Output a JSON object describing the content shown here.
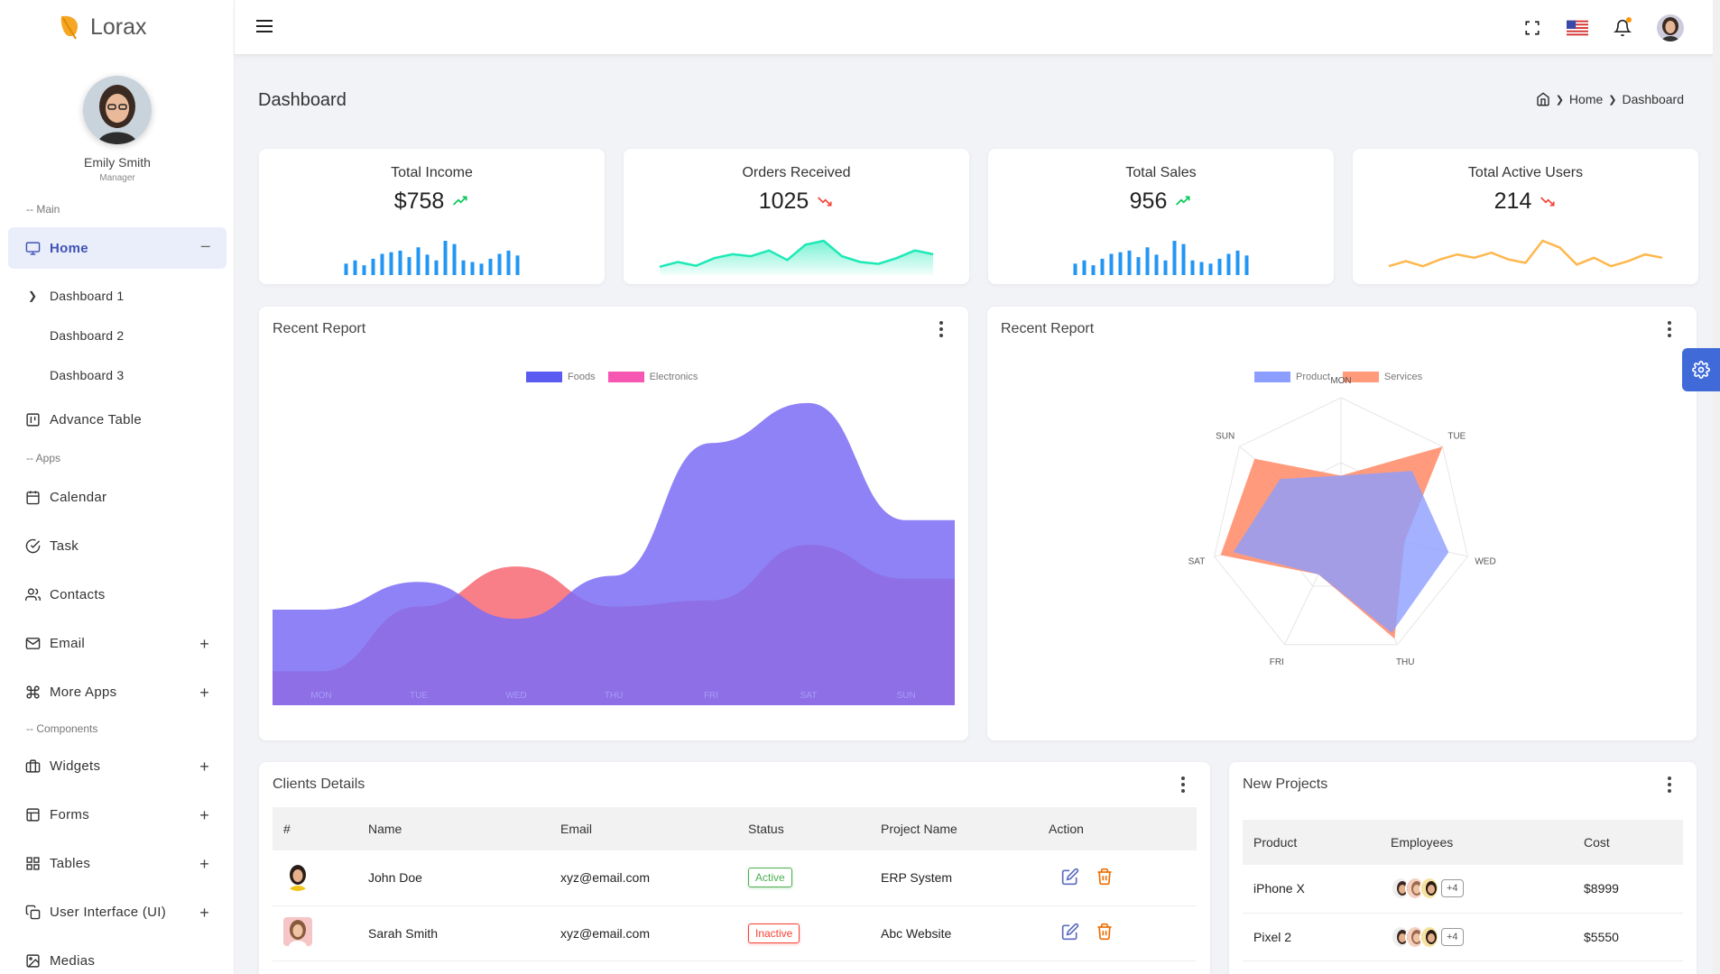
{
  "app": {
    "name": "Lorax"
  },
  "profile": {
    "name": "Emily Smith",
    "role": "Manager"
  },
  "sidebar": {
    "sections": {
      "main": "-- Main",
      "apps": "-- Apps",
      "components": "-- Components"
    },
    "home": {
      "label": "Home",
      "toggle": "–"
    },
    "dashboards": [
      "Dashboard 1",
      "Dashboard 2",
      "Dashboard 3"
    ],
    "advance_table": "Advance Table",
    "apps": [
      {
        "label": "Calendar",
        "icon": "calendar-icon"
      },
      {
        "label": "Task",
        "icon": "task-icon"
      },
      {
        "label": "Contacts",
        "icon": "contacts-icon"
      },
      {
        "label": "Email",
        "icon": "mail-icon",
        "expand": "+"
      },
      {
        "label": "More Apps",
        "icon": "command-icon",
        "expand": "+"
      }
    ],
    "components": [
      {
        "label": "Widgets",
        "icon": "briefcase-icon",
        "expand": "+"
      },
      {
        "label": "Forms",
        "icon": "layout-icon",
        "expand": "+"
      },
      {
        "label": "Tables",
        "icon": "grid-icon",
        "expand": "+"
      },
      {
        "label": "User Interface (UI)",
        "icon": "copy-icon",
        "expand": "+"
      },
      {
        "label": "Medias",
        "icon": "image-icon"
      }
    ]
  },
  "header": {
    "title": "Dashboard",
    "breadcrumb": {
      "home": "Home",
      "current": "Dashboard"
    }
  },
  "stats": [
    {
      "title": "Total Income",
      "value": "$758",
      "trend": "up",
      "chart": "bar",
      "color": "#2196f3",
      "data": [
        14,
        18,
        12,
        20,
        26,
        28,
        30,
        22,
        34,
        25,
        18,
        42,
        38,
        18,
        16,
        14,
        20,
        26,
        30,
        24
      ]
    },
    {
      "title": "Orders Received",
      "value": "1025",
      "trend": "down",
      "chart": "area",
      "color": "#1de9b6",
      "data": [
        3,
        8,
        4,
        12,
        16,
        14,
        20,
        10,
        26,
        30,
        14,
        8,
        6,
        12,
        20,
        16
      ]
    },
    {
      "title": "Total Sales",
      "value": "956",
      "trend": "up",
      "chart": "bar",
      "color": "#2196f3",
      "data": [
        14,
        18,
        12,
        20,
        26,
        28,
        30,
        22,
        34,
        25,
        18,
        42,
        38,
        18,
        16,
        14,
        20,
        26,
        30,
        24
      ]
    },
    {
      "title": "Total Active Users",
      "value": "214",
      "trend": "down",
      "chart": "line",
      "color": "#ffb74d",
      "data": [
        4,
        10,
        4,
        12,
        18,
        14,
        20,
        12,
        8,
        34,
        26,
        6,
        14,
        4,
        10,
        18,
        14
      ]
    }
  ],
  "report1": {
    "title": "Recent Report",
    "chart_data": {
      "type": "area",
      "categories": [
        "MON",
        "TUE",
        "WED",
        "THU",
        "FRI",
        "SAT",
        "SUN"
      ],
      "series": [
        {
          "name": "Foods",
          "values": [
            31,
            40,
            28,
            42,
            85,
            98,
            60
          ],
          "color": "#7b6cf6"
        },
        {
          "name": "Electronics",
          "values": [
            11,
            32,
            45,
            32,
            34,
            52,
            41
          ],
          "color": "#f7717a"
        }
      ]
    }
  },
  "report2": {
    "title": "Recent Report",
    "chart_data": {
      "type": "radar",
      "categories": [
        "MON",
        "TUE",
        "WED",
        "THU",
        "FRI",
        "SAT",
        "SUN"
      ],
      "series": [
        {
          "name": "Product",
          "values": [
            40,
            70,
            85,
            90,
            40,
            85,
            60
          ],
          "color": "#8c9eff"
        },
        {
          "name": "Services",
          "values": [
            40,
            100,
            50,
            95,
            40,
            95,
            85
          ],
          "color": "#ff8a65"
        }
      ]
    }
  },
  "clients": {
    "title": "Clients Details",
    "columns": [
      "#",
      "Name",
      "Email",
      "Status",
      "Project Name",
      "Action"
    ],
    "rows": [
      {
        "name": "John Doe",
        "email": "xyz@email.com",
        "status": "Active",
        "project": "ERP System"
      },
      {
        "name": "Sarah Smith",
        "email": "xyz@email.com",
        "status": "Inactive",
        "project": "Abc Website"
      }
    ]
  },
  "projects": {
    "title": "New Projects",
    "columns": [
      "Product",
      "Employees",
      "Cost"
    ],
    "rows": [
      {
        "product": "iPhone X",
        "more": "+4",
        "cost": "$8999"
      },
      {
        "product": "Pixel 2",
        "more": "+4",
        "cost": "$5550"
      }
    ]
  }
}
